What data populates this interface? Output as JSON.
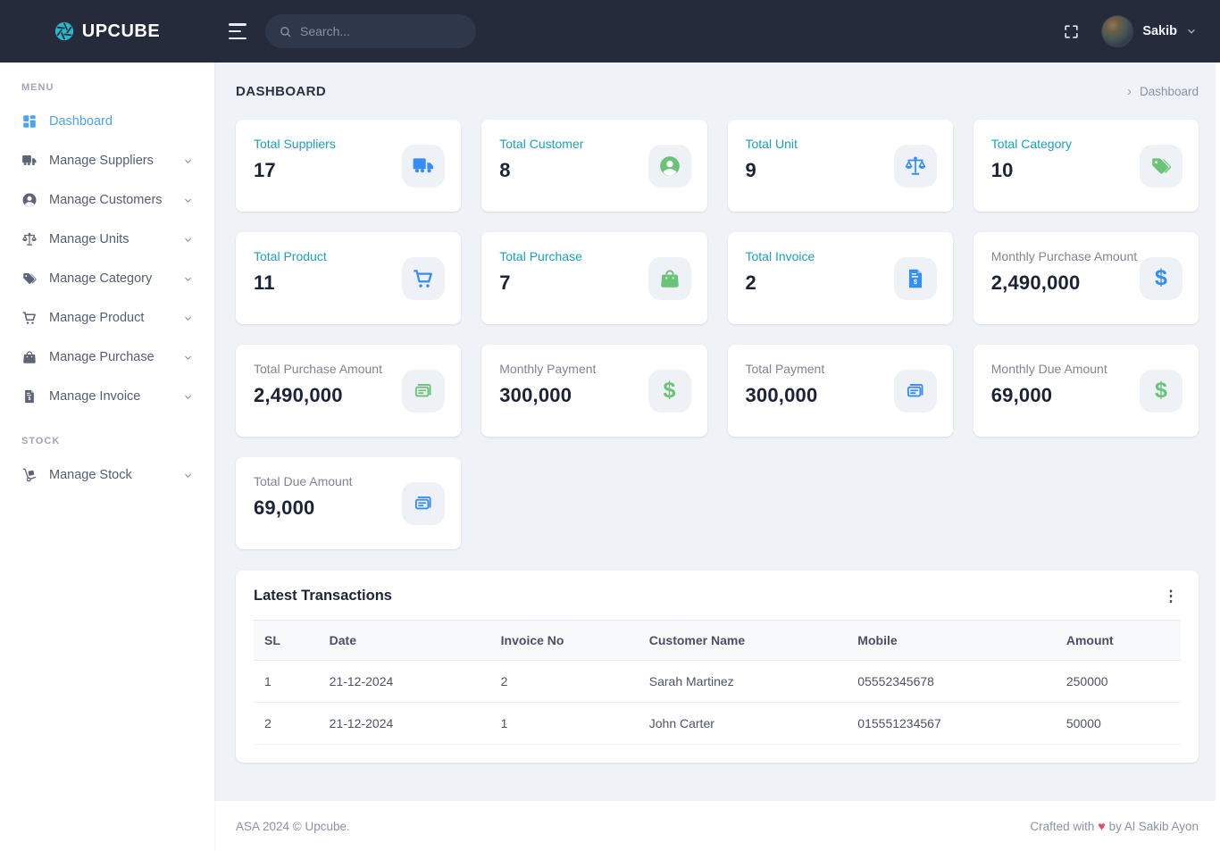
{
  "navbar": {
    "brand": "UPCUBE",
    "search_placeholder": "Search...",
    "user_name": "Sakib"
  },
  "page": {
    "title": "DASHBOARD",
    "breadcrumb_chevron": "›",
    "breadcrumb": "Dashboard"
  },
  "sidebar": {
    "sections": [
      {
        "label": "MENU",
        "items": [
          {
            "label": "Dashboard",
            "icon": "dashboard-icon",
            "active": true,
            "expandable": false
          },
          {
            "label": "Manage Suppliers",
            "icon": "truck-icon",
            "active": false,
            "expandable": true
          },
          {
            "label": "Manage Customers",
            "icon": "user-icon",
            "active": false,
            "expandable": true
          },
          {
            "label": "Manage Units",
            "icon": "scale-icon",
            "active": false,
            "expandable": true
          },
          {
            "label": "Manage Category",
            "icon": "tags-icon",
            "active": false,
            "expandable": true
          },
          {
            "label": "Manage Product",
            "icon": "cart-icon",
            "active": false,
            "expandable": true
          },
          {
            "label": "Manage Purchase",
            "icon": "bag-icon",
            "active": false,
            "expandable": true
          },
          {
            "label": "Manage Invoice",
            "icon": "invoice-icon",
            "active": false,
            "expandable": true
          }
        ]
      },
      {
        "label": "STOCK",
        "items": [
          {
            "label": "Manage Stock",
            "icon": "dolly-icon",
            "active": false,
            "expandable": true
          }
        ]
      }
    ]
  },
  "cards": [
    {
      "title": "Total Suppliers",
      "value": "17",
      "icon": "truck-icon",
      "icon_color": "blue",
      "title_style": "teal"
    },
    {
      "title": "Total Customer",
      "value": "8",
      "icon": "user-icon",
      "icon_color": "green",
      "title_style": "teal"
    },
    {
      "title": "Total Unit",
      "value": "9",
      "icon": "scale-icon",
      "icon_color": "blue",
      "title_style": "teal"
    },
    {
      "title": "Total Category",
      "value": "10",
      "icon": "tags-icon",
      "icon_color": "green",
      "title_style": "teal"
    },
    {
      "title": "Total Product",
      "value": "11",
      "icon": "cart-icon",
      "icon_color": "blue",
      "title_style": "teal"
    },
    {
      "title": "Total Purchase",
      "value": "7",
      "icon": "bag-icon",
      "icon_color": "green",
      "title_style": "teal"
    },
    {
      "title": "Total Invoice",
      "value": "2",
      "icon": "invoice-icon",
      "icon_color": "blue",
      "title_style": "teal"
    },
    {
      "title": "Monthly Purchase Amount",
      "value": "2,490,000",
      "icon": "dollar-icon",
      "icon_color": "blue",
      "title_style": "gray"
    },
    {
      "title": "Total Purchase Amount",
      "value": "2,490,000",
      "icon": "cash-icon",
      "icon_color": "green",
      "title_style": "gray"
    },
    {
      "title": "Monthly Payment",
      "value": "300,000",
      "icon": "dollar-icon",
      "icon_color": "green",
      "title_style": "gray"
    },
    {
      "title": "Total Payment",
      "value": "300,000",
      "icon": "cash-icon",
      "icon_color": "blue",
      "title_style": "gray"
    },
    {
      "title": "Monthly Due Amount",
      "value": "69,000",
      "icon": "dollar-icon",
      "icon_color": "green",
      "title_style": "gray"
    },
    {
      "title": "Total Due Amount",
      "value": "69,000",
      "icon": "cash-icon",
      "icon_color": "blue",
      "title_style": "gray"
    }
  ],
  "transactions": {
    "title": "Latest Transactions",
    "kebab_icon": "kebab-menu-icon",
    "columns": [
      "SL",
      "Date",
      "Invoice No",
      "Customer Name",
      "Mobile",
      "Amount"
    ],
    "rows": [
      [
        "1",
        "21-12-2024",
        "2",
        "Sarah Martinez",
        "05552345678",
        "250000"
      ],
      [
        "2",
        "21-12-2024",
        "1",
        "John Carter",
        "015551234567",
        "50000"
      ]
    ]
  },
  "footer": {
    "left": "ASA 2024 © Upcube.",
    "right_prefix": "Crafted with",
    "heart": "♥",
    "right_suffix": "by Al Sakib Ayon"
  },
  "colors": {
    "navbar_bg": "#252b3b",
    "brand_teal": "#2ab7c9",
    "sidebar_active": "#4aa3f5",
    "stat_title_teal": "#16a3b8",
    "stat_title_gray": "#808593",
    "icon_blue": "#338ef7",
    "icon_green": "#6bc377",
    "value_dark": "#1b2337",
    "heart_red": "#ee4961",
    "page_bg": "#eff2f6"
  }
}
